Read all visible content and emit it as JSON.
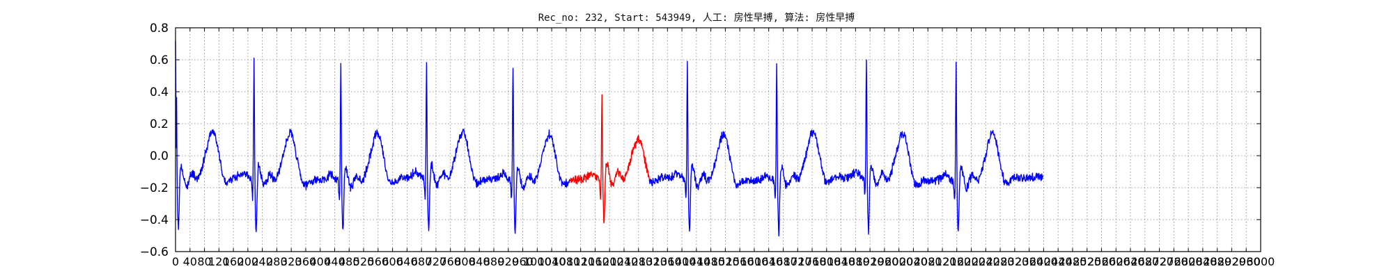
{
  "chart_data": {
    "type": "line",
    "title": "Rec_no: 232, Start: 543949, 人工: 房性早搏, 算法: 房性早搏",
    "xlabel": "",
    "ylabel": "",
    "xlim": [
      0,
      3000
    ],
    "ylim": [
      -0.6,
      0.8
    ],
    "yticks": [
      -0.6,
      -0.4,
      -0.2,
      0.0,
      0.2,
      0.4,
      0.6,
      0.8
    ],
    "ytick_labels": [
      "−0.6",
      "−0.4",
      "−0.2",
      "0.0",
      "0.2",
      "0.4",
      "0.6",
      "0.8"
    ],
    "xtick_step": 40,
    "grid": true,
    "grid_style": "dotted",
    "colors": {
      "normal": "#0000ff",
      "highlight": "#ff0000",
      "axis": "#000000",
      "grid": "#7f7f7f"
    },
    "sample_count": 2400,
    "beats": [
      {
        "r": 2,
        "type": "N"
      },
      {
        "r": 217,
        "type": "N"
      },
      {
        "r": 457,
        "type": "N"
      },
      {
        "r": 694,
        "type": "N"
      },
      {
        "r": 933,
        "type": "N"
      },
      {
        "r": 1179,
        "type": "APB"
      },
      {
        "r": 1415,
        "type": "N"
      },
      {
        "r": 1662,
        "type": "N"
      },
      {
        "r": 1910,
        "type": "N"
      },
      {
        "r": 2158,
        "type": "N"
      }
    ],
    "series": [
      {
        "name": "",
        "color": "#0000ff",
        "x_range": [
          0,
          1090
        ]
      },
      {
        "name": "",
        "color": "#ff0000",
        "x_range": [
          1090,
          1310
        ]
      },
      {
        "name": "",
        "color": "#0000ff",
        "x_range": [
          1310,
          2400
        ]
      }
    ]
  }
}
